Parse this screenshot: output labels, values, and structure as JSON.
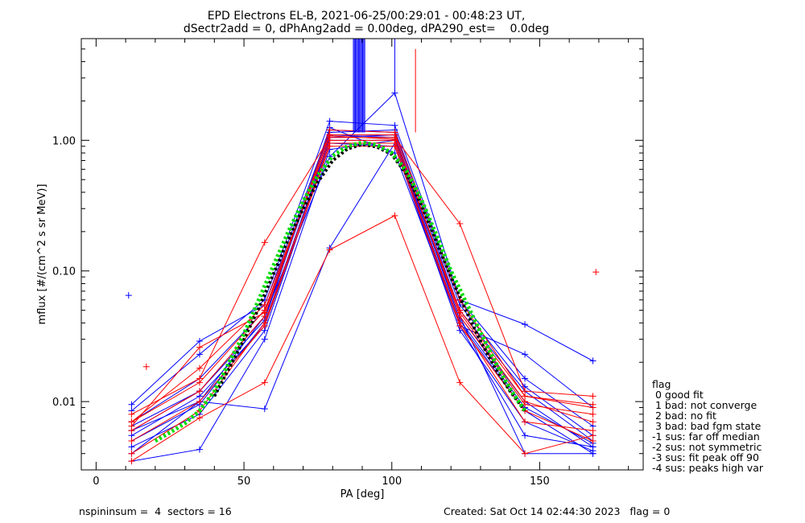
{
  "chart_data": {
    "type": "line",
    "title": "EPD Electrons EL-B, 2021-06-25/00:29:01 - 00:48:23 UT,",
    "subtitle": "dSectr2add = 0, dPhAng2add = 0.00deg, dPA290_est=    0.0deg",
    "xlabel": "PA [deg]",
    "ylabel": "mflux [#/(cm^2 s sr MeV)]",
    "xlim": [
      -5,
      185
    ],
    "ylim": [
      0.003,
      6.0
    ],
    "yscale": "log",
    "xticks": [
      0,
      50,
      100,
      150
    ],
    "xtick_labels": [
      "0",
      "50",
      "100",
      "150"
    ],
    "yticks": [
      0.01,
      0.1,
      1.0
    ],
    "ytick_labels": [
      "0.01",
      "0.10",
      "1.00"
    ],
    "grid": false,
    "legend_position": "bottom-right outside plot",
    "colors": {
      "blue": "#0000ff",
      "red": "#ff0000",
      "green": "#00dd00",
      "black": "#000000"
    },
    "pa_bins": [
      12,
      35,
      57,
      79,
      101,
      123,
      145,
      168
    ],
    "series": [
      {
        "color": "blue",
        "values": [
          0.006,
          0.012,
          0.045,
          1.1,
          1.05,
          0.045,
          0.01,
          0.0045
        ]
      },
      {
        "color": "blue",
        "values": [
          0.0095,
          0.029,
          0.055,
          1.2,
          1.15,
          0.05,
          0.012,
          0.005
        ]
      },
      {
        "color": "blue",
        "values": [
          0.005,
          0.0095,
          0.04,
          1.0,
          1.0,
          0.04,
          0.0085,
          0.004
        ]
      },
      {
        "color": "blue",
        "values": [
          0.0085,
          0.023,
          0.06,
          1.4,
          1.3,
          0.06,
          0.015,
          0.0065
        ]
      },
      {
        "color": "blue",
        "values": [
          0.0045,
          0.008,
          0.035,
          0.95,
          0.9,
          0.035,
          0.007,
          0.0042
        ]
      },
      {
        "color": "blue",
        "values": [
          0.007,
          0.015,
          0.05,
          1.15,
          1.2,
          0.055,
          0.013,
          0.0055
        ]
      },
      {
        "color": "blue",
        "values": [
          0.0055,
          0.011,
          0.038,
          1.05,
          1.1,
          0.042,
          0.009,
          0.0048
        ]
      },
      {
        "color": "blue",
        "values": [
          0.006,
          0.01,
          0.045,
          0.75,
          2.3,
          0.06,
          0.039,
          0.0205
        ]
      },
      {
        "color": "blue",
        "values": [
          0.004,
          0.01,
          0.0088,
          0.15,
          0.95,
          0.038,
          0.023,
          0.009
        ]
      },
      {
        "color": "blue",
        "values": [
          0.0065,
          0.012,
          0.042,
          1.25,
          0.8,
          0.038,
          0.0055,
          0.0045
        ]
      },
      {
        "color": "blue",
        "values": [
          0.0035,
          0.0043,
          0.03,
          0.85,
          1.0,
          0.045,
          0.004,
          0.004
        ]
      },
      {
        "color": "red",
        "values": [
          0.007,
          0.018,
          0.055,
          1.0,
          1.0,
          0.05,
          0.011,
          0.0095
        ]
      },
      {
        "color": "red",
        "values": [
          0.0065,
          0.026,
          0.048,
          1.1,
          1.1,
          0.045,
          0.0095,
          0.008
        ]
      },
      {
        "color": "red",
        "values": [
          0.004,
          0.0085,
          0.04,
          0.95,
          0.95,
          0.04,
          0.007,
          0.006
        ]
      },
      {
        "color": "red",
        "values": [
          0.008,
          0.015,
          0.165,
          1.05,
          1.05,
          0.23,
          0.012,
          0.011
        ]
      },
      {
        "color": "red",
        "values": [
          0.0035,
          0.0075,
          0.014,
          0.145,
          0.265,
          0.014,
          0.004,
          0.0055
        ]
      },
      {
        "color": "red",
        "values": [
          0.006,
          0.012,
          0.045,
          1.2,
          1.15,
          0.06,
          0.011,
          0.009
        ]
      },
      {
        "color": "red",
        "values": [
          0.005,
          0.01,
          0.038,
          0.9,
          0.9,
          0.038,
          0.0085,
          0.005
        ]
      },
      {
        "color": "red",
        "values": [
          0.007,
          0.014,
          0.05,
          1.08,
          1.02,
          0.048,
          0.01,
          0.007
        ]
      }
    ],
    "outlier_points": [
      {
        "color": "blue",
        "x": 11,
        "y": 0.065
      },
      {
        "color": "red",
        "x": 17,
        "y": 0.0185
      },
      {
        "color": "red",
        "x": 169,
        "y": 0.098
      }
    ],
    "fit_curves": [
      {
        "color": "green",
        "x": [
          20,
          25,
          30,
          35,
          40,
          45,
          50,
          55,
          60,
          65,
          70,
          75,
          80,
          85,
          90,
          95,
          100,
          105,
          110,
          115,
          120,
          125,
          130,
          135,
          140,
          145
        ],
        "y": [
          0.005,
          0.0058,
          0.0068,
          0.0085,
          0.012,
          0.02,
          0.033,
          0.06,
          0.11,
          0.2,
          0.34,
          0.54,
          0.76,
          0.9,
          0.96,
          0.92,
          0.8,
          0.58,
          0.35,
          0.19,
          0.1,
          0.058,
          0.034,
          0.02,
          0.0125,
          0.0085
        ]
      },
      {
        "color": "black",
        "x": [
          40,
          45,
          50,
          55,
          60,
          65,
          70,
          75,
          80,
          85,
          90,
          95,
          100,
          105,
          110,
          115,
          120,
          125,
          130,
          135,
          140,
          145
        ],
        "y": [
          0.011,
          0.018,
          0.03,
          0.052,
          0.095,
          0.175,
          0.3,
          0.48,
          0.7,
          0.86,
          0.93,
          0.89,
          0.78,
          0.55,
          0.32,
          0.17,
          0.09,
          0.05,
          0.029,
          0.018,
          0.012,
          0.0085
        ]
      }
    ],
    "spikes": [
      {
        "color": "blue",
        "x_start": 87,
        "x_end": 91,
        "y_bottom": 1.15,
        "y_top": 6.0
      },
      {
        "color": "blue",
        "x": 101,
        "y_bottom": 2.3,
        "y_top": 6.0
      },
      {
        "color": "red",
        "x": 108,
        "y_bottom": 1.15,
        "y_top": 5.0
      }
    ]
  },
  "legend": {
    "title": "flag",
    "items": [
      " 0 good fit",
      " 1 bad: not converge",
      " 2 bad: no fit",
      " 3 bad: bad fgm state",
      "-1 sus: far off median",
      "-2 sus: not symmetric",
      "-3 sus: fit peak off 90",
      "-4 sus: peaks high var"
    ]
  },
  "footer": {
    "left": "nspininsum =  4  sectors = 16",
    "right": "Created: Sat Oct 14 02:44:30 2023   flag = 0"
  }
}
